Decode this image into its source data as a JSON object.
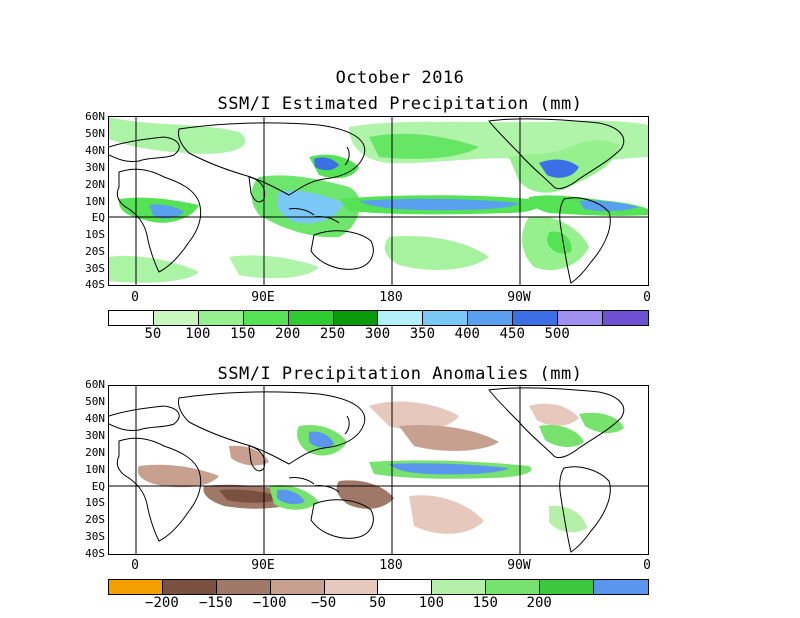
{
  "title": {
    "month": "October 2016"
  },
  "panels": {
    "estimated": {
      "title": "SSM/I Estimated Precipitation (mm)",
      "lat_labels": [
        "60N",
        "50N",
        "40N",
        "30N",
        "20N",
        "10N",
        "EQ",
        "10S",
        "20S",
        "30S",
        "40S"
      ],
      "lon_labels": [
        "0",
        "90E",
        "180",
        "90W",
        "0"
      ],
      "colorbar": {
        "colors": [
          "#ffffff",
          "#c8f7c0",
          "#96f08e",
          "#55e255",
          "#2ecc2e",
          "#0a9b0a",
          "#b4f0fa",
          "#7ac8f5",
          "#5aa0f0",
          "#3c6ee6",
          "#a090f0",
          "#6e50d2"
        ],
        "labels": [
          "50",
          "100",
          "150",
          "200",
          "250",
          "300",
          "350",
          "400",
          "450",
          "500"
        ]
      }
    },
    "anomaly": {
      "title": "SSM/I Precipitation Anomalies (mm)",
      "lat_labels": [
        "60N",
        "50N",
        "40N",
        "30N",
        "20N",
        "10N",
        "EQ",
        "10S",
        "20S",
        "30S",
        "40S"
      ],
      "lon_labels": [
        "0",
        "90E",
        "180",
        "90W",
        "0"
      ],
      "colorbar": {
        "colors": [
          "#f5a000",
          "#7a5040",
          "#a07868",
          "#c8a090",
          "#e6c8bc",
          "#ffffff",
          "#b4f0a8",
          "#78e26e",
          "#3cc83c",
          "#5a96ee"
        ],
        "labels": [
          "−200",
          "−150",
          "−100",
          "−50",
          "50",
          "100",
          "150",
          "200"
        ]
      }
    }
  }
}
